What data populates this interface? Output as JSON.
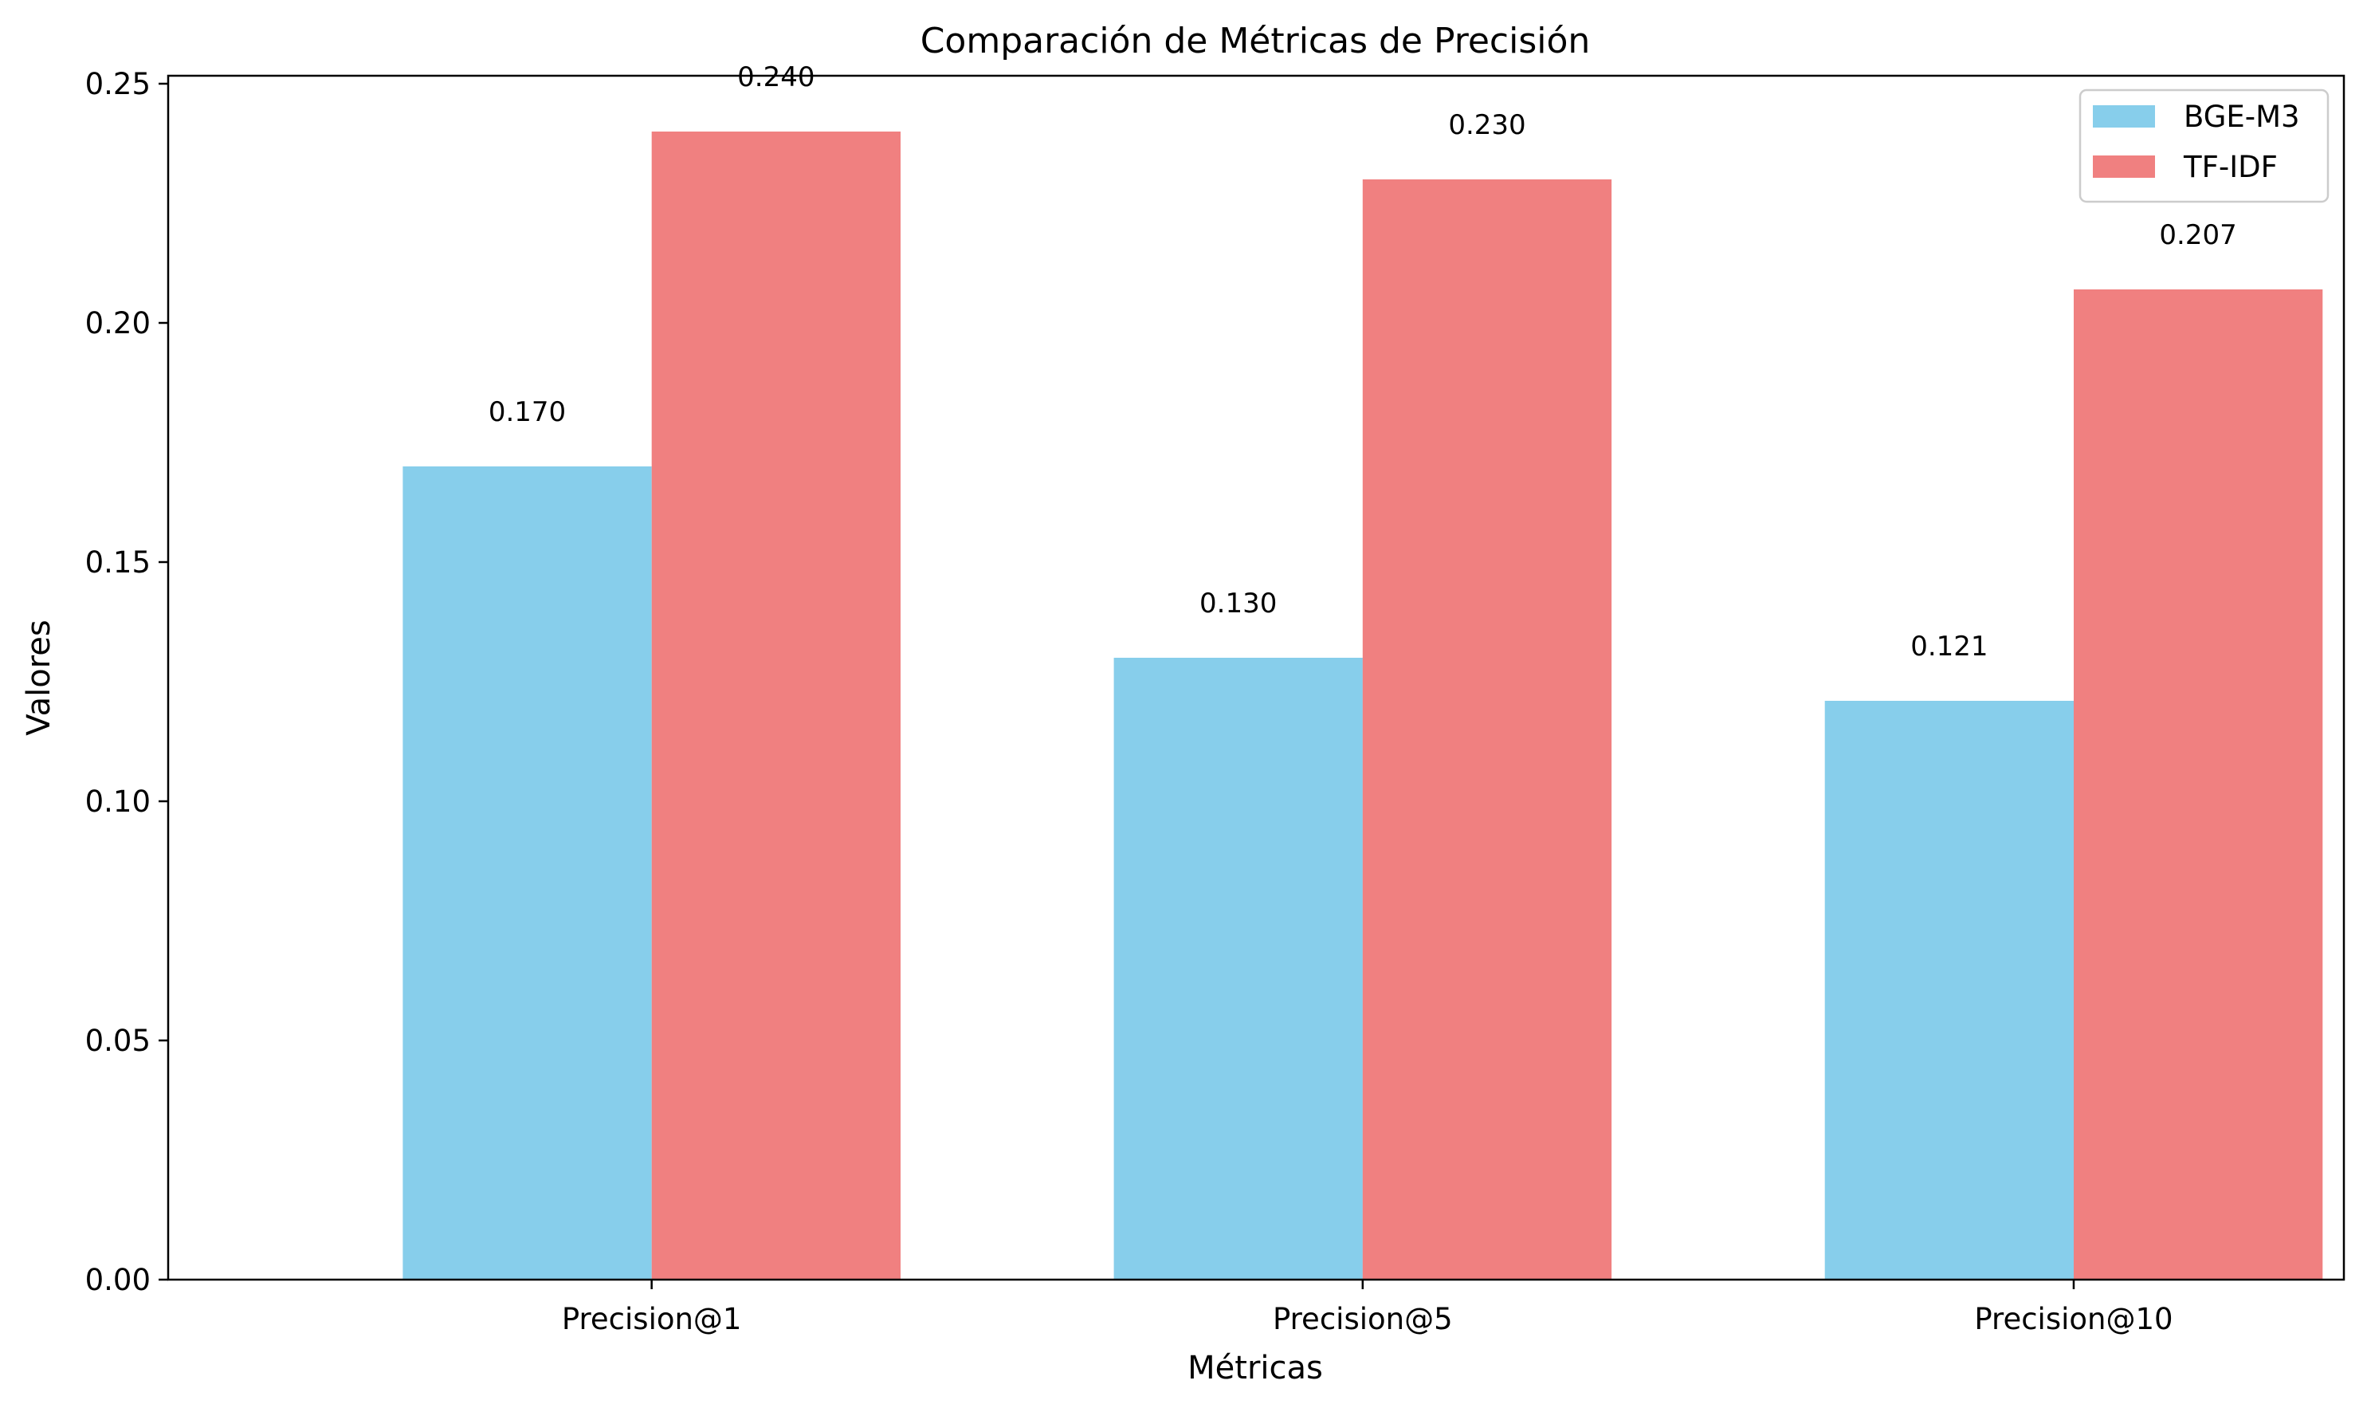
{
  "chart_data": {
    "type": "bar",
    "title": "Comparación de Métricas de Precisión",
    "xlabel": "Métricas",
    "ylabel": "Valores",
    "categories": [
      "Precision@1",
      "Precision@5",
      "Precision@10"
    ],
    "series": [
      {
        "name": "BGE-M3",
        "color": "#87ceeb",
        "values": [
          0.17,
          0.13,
          0.121
        ],
        "labels": [
          "0.170",
          "0.130",
          "0.121"
        ]
      },
      {
        "name": "TF-IDF",
        "color": "#f08080",
        "values": [
          0.24,
          0.23,
          0.207
        ],
        "labels": [
          "0.240",
          "0.230",
          "0.207"
        ]
      }
    ],
    "ylim": [
      0,
      0.25
    ],
    "yticks": [
      0.0,
      0.05,
      0.1,
      0.15,
      0.2,
      0.25
    ],
    "ytick_labels": [
      "0.00",
      "0.05",
      "0.10",
      "0.15",
      "0.20",
      "0.25"
    ],
    "legend_position": "top-right",
    "grid": false
  }
}
